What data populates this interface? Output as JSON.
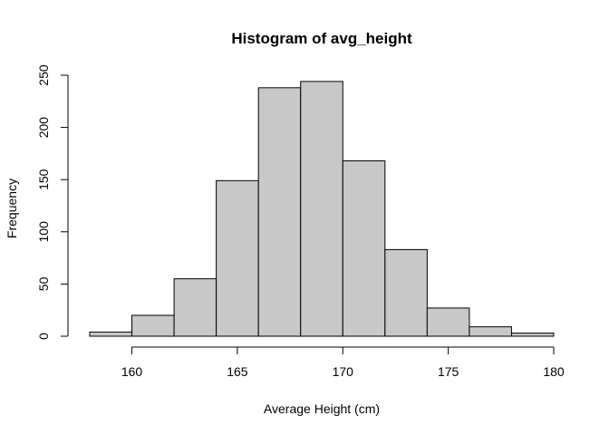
{
  "chart_data": {
    "type": "bar",
    "subtype": "histogram",
    "title": "Histogram of avg_height",
    "xlabel": "Average Height (cm)",
    "ylabel": "Frequency",
    "bins": [
      {
        "start": 158,
        "end": 160,
        "count": 4
      },
      {
        "start": 160,
        "end": 162,
        "count": 20
      },
      {
        "start": 162,
        "end": 164,
        "count": 55
      },
      {
        "start": 164,
        "end": 166,
        "count": 149
      },
      {
        "start": 166,
        "end": 168,
        "count": 238
      },
      {
        "start": 168,
        "end": 170,
        "count": 244
      },
      {
        "start": 170,
        "end": 172,
        "count": 168
      },
      {
        "start": 172,
        "end": 174,
        "count": 83
      },
      {
        "start": 174,
        "end": 176,
        "count": 27
      },
      {
        "start": 176,
        "end": 178,
        "count": 9
      },
      {
        "start": 178,
        "end": 180,
        "count": 3
      }
    ],
    "xticks": [
      160,
      165,
      170,
      175,
      180
    ],
    "yticks": [
      0,
      50,
      100,
      150,
      200,
      250
    ],
    "xlim": [
      158,
      180
    ],
    "ylim": [
      0,
      250
    ],
    "bar_color": "#c8c8c8",
    "edge_color": "#000000",
    "grid": false,
    "legend": "none"
  }
}
